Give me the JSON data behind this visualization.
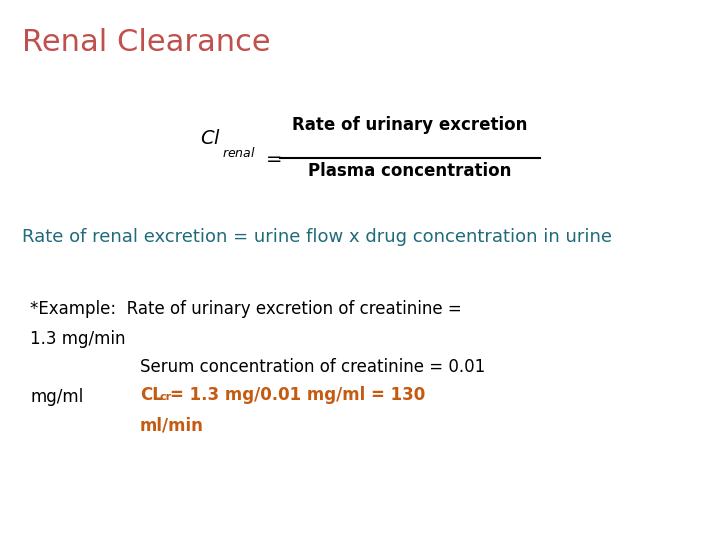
{
  "title": "Renal Clearance",
  "title_color": "#c0504d",
  "title_fontsize": 22,
  "bg_color": "#ffffff",
  "formula_color": "#000000",
  "highlight_color": "#1f6b7a",
  "orange_color": "#c55a11",
  "rate_line_text": "Rate of renal excretion = urine flow x drug concentration in urine",
  "example_line1": "*Example:  Rate of urinary excretion of creatinine =",
  "example_line2": "1.3 mg/min",
  "serum_line": "Serum concentration of creatinine = 0.01",
  "mgml_text": "mg/ml",
  "cl_main": "CL",
  "cl_sub": "cr",
  "cl_rest": "= 1.3 mg/0.01 mg/ml = 130",
  "cl_last": "ml/min"
}
